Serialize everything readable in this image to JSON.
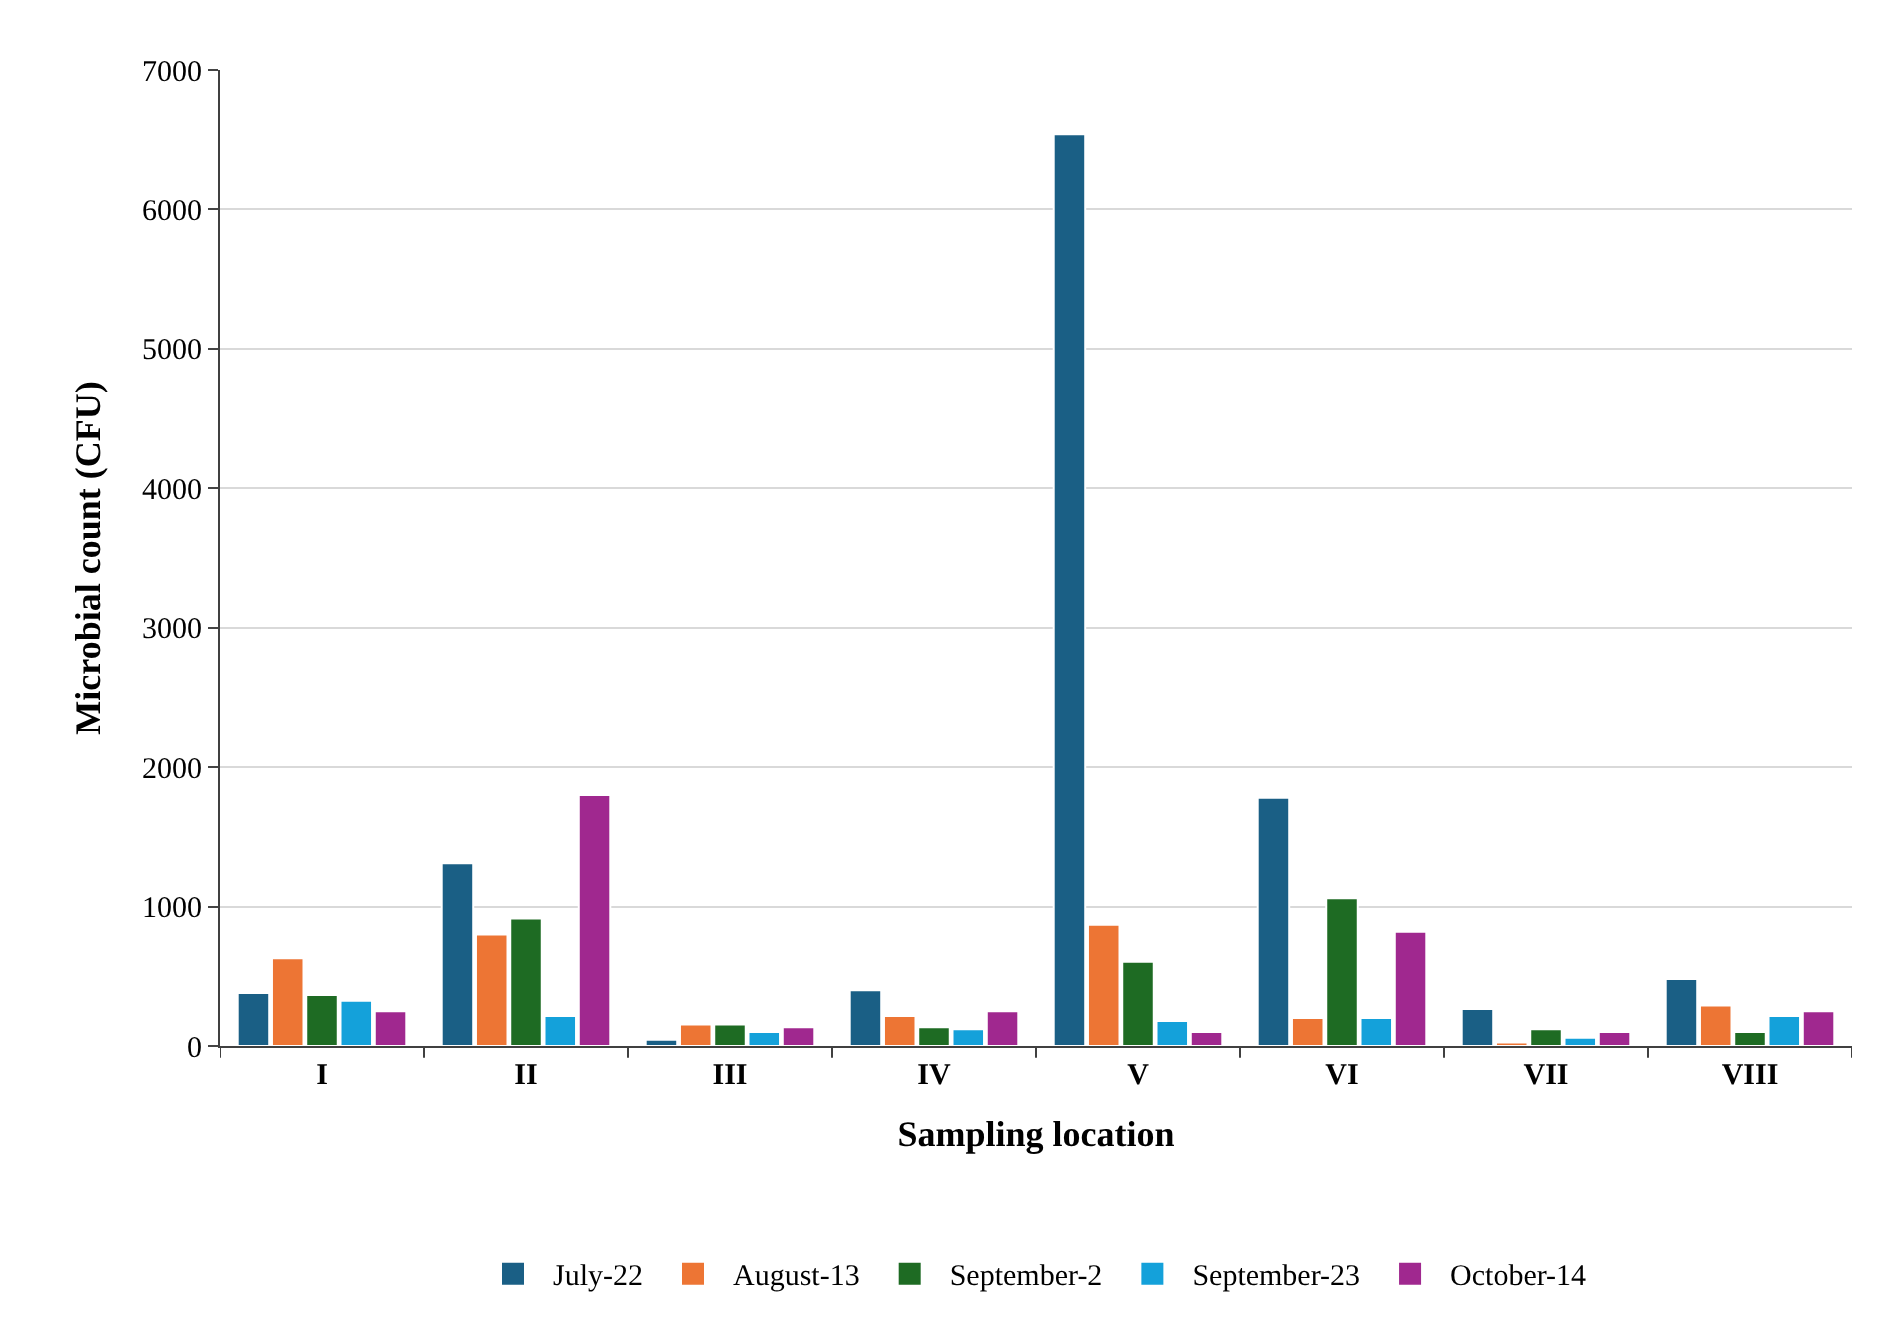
{
  "chart_data": {
    "type": "bar",
    "xlabel": "Sampling location",
    "ylabel": "Microbial count (CFU)",
    "categories": [
      "I",
      "II",
      "III",
      "IV",
      "V",
      "VI",
      "VII",
      "VIII"
    ],
    "series": [
      {
        "name": "July-22",
        "color": "#1a5f85",
        "values": [
          380,
          1310,
          45,
          400,
          6540,
          1780,
          265,
          480
        ]
      },
      {
        "name": "August-13",
        "color": "#ed7534",
        "values": [
          630,
          800,
          155,
          215,
          870,
          200,
          25,
          290
        ]
      },
      {
        "name": "September-2",
        "color": "#1e6b23",
        "values": [
          365,
          915,
          155,
          135,
          605,
          1060,
          120,
          100
        ]
      },
      {
        "name": "September-23",
        "color": "#14a1da",
        "values": [
          325,
          215,
          100,
          120,
          180,
          200,
          60,
          215
        ]
      },
      {
        "name": "October-14",
        "color": "#a0288f",
        "values": [
          250,
          1800,
          135,
          250,
          100,
          820,
          100,
          250
        ]
      }
    ],
    "ylim": [
      0,
      7000
    ],
    "yticks": [
      0,
      1000,
      2000,
      3000,
      4000,
      5000,
      6000,
      7000
    ],
    "grid": "y",
    "legend": "bottom"
  }
}
